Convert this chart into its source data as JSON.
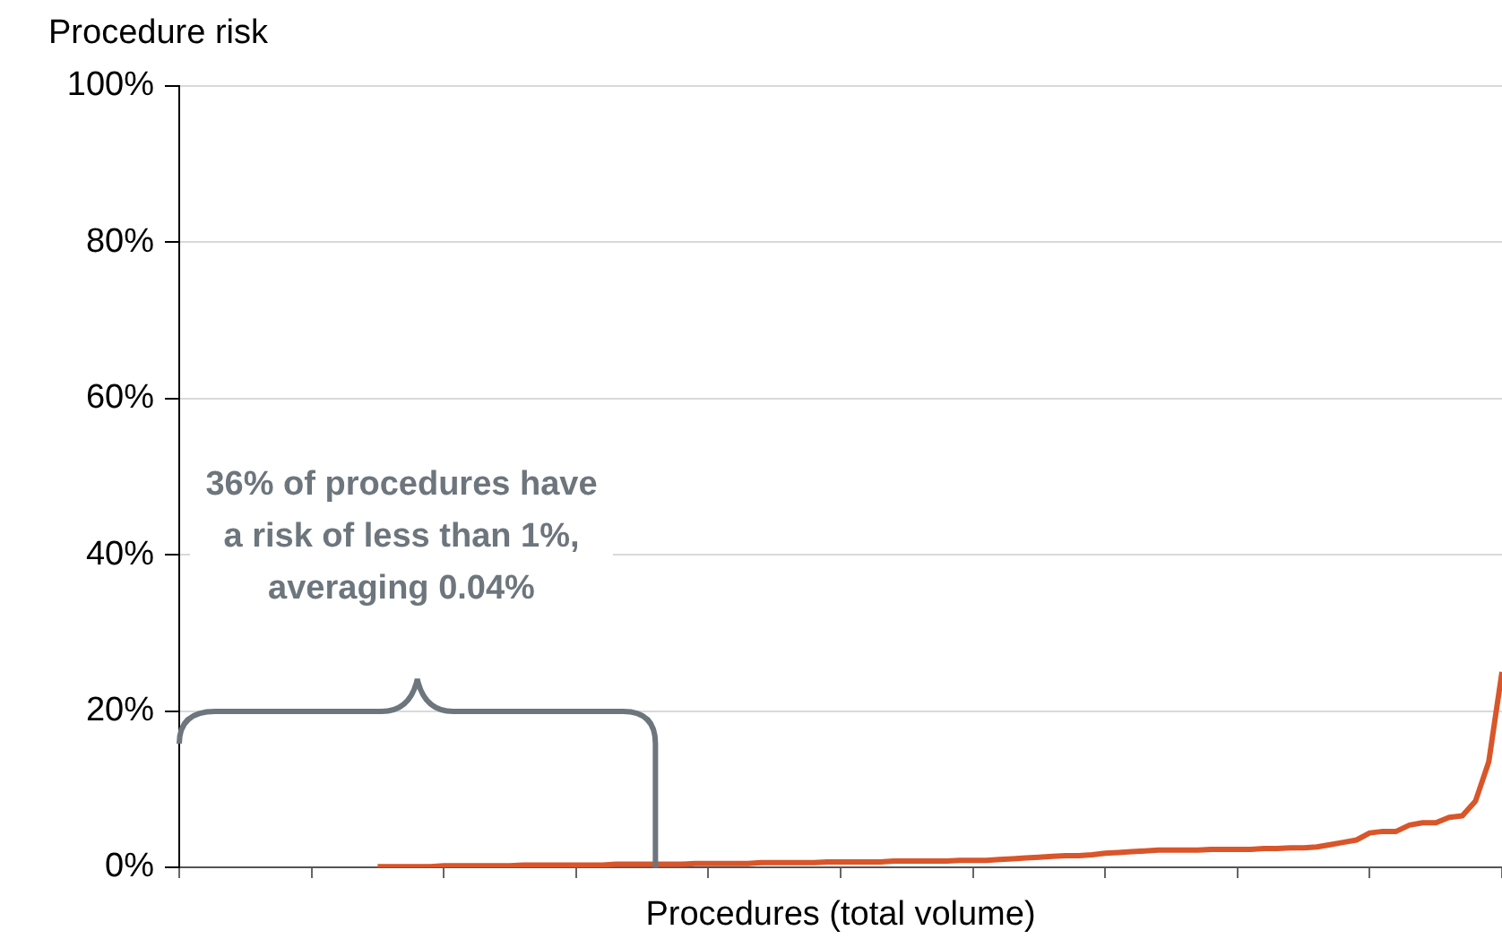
{
  "chart_data": {
    "type": "line",
    "ylabel": "Procedure risk",
    "xlabel": "Procedures (total volume)",
    "categories": [
      null,
      null,
      null,
      null,
      null,
      null,
      null,
      null,
      null,
      null,
      null,
      null,
      null,
      null,
      null,
      null,
      null,
      null,
      null,
      null,
      null,
      null,
      null,
      null,
      null,
      null,
      null,
      null,
      null,
      null,
      null,
      null,
      null,
      null,
      null,
      null,
      null,
      null,
      null,
      null,
      null,
      null,
      null,
      null,
      null,
      null,
      null,
      null,
      null,
      null,
      null,
      null,
      null,
      null,
      null,
      null,
      null,
      null,
      null,
      null,
      null,
      null,
      null,
      null,
      null,
      null,
      null,
      null,
      null,
      null,
      null,
      null,
      null,
      null,
      null,
      null,
      null,
      null,
      null,
      null,
      null,
      null,
      null,
      null,
      null,
      null,
      null,
      null,
      null,
      null,
      null,
      null,
      null,
      null,
      null,
      null,
      null,
      null,
      null,
      null,
      null
    ],
    "series": [
      {
        "color": "#d9552a",
        "values": [
          null,
          null,
          null,
          null,
          null,
          null,
          null,
          null,
          null,
          null,
          null,
          null,
          null,
          null,
          null,
          0.1,
          0.1,
          0.1,
          0.1,
          0.1,
          0.2,
          0.2,
          0.2,
          0.2,
          0.2,
          0.2,
          0.3,
          0.3,
          0.3,
          0.3,
          0.3,
          0.3,
          0.3,
          0.4,
          0.4,
          0.4,
          0.4,
          0.4,
          0.4,
          0.5,
          0.5,
          0.5,
          0.5,
          0.5,
          0.6,
          0.6,
          0.6,
          0.6,
          0.6,
          0.7,
          0.7,
          0.7,
          0.7,
          0.7,
          0.8,
          0.8,
          0.8,
          0.8,
          0.8,
          0.9,
          0.9,
          0.9,
          1.0,
          1.1,
          1.2,
          1.3,
          1.4,
          1.5,
          1.5,
          1.6,
          1.8,
          1.9,
          2.0,
          2.1,
          2.2,
          2.2,
          2.2,
          2.2,
          2.3,
          2.3,
          2.3,
          2.3,
          2.4,
          2.4,
          2.5,
          2.5,
          2.6,
          2.9,
          3.2,
          3.5,
          4.4,
          4.6,
          4.6,
          5.4,
          5.7,
          5.7,
          6.4,
          6.6,
          8.5,
          13.5,
          25
        ]
      }
    ],
    "ylim": [
      0,
      100
    ],
    "yticks": [
      {
        "value": 0,
        "label": "0%"
      },
      {
        "value": 20,
        "label": "20%"
      },
      {
        "value": 40,
        "label": "40%"
      },
      {
        "value": 60,
        "label": "60%"
      },
      {
        "value": 80,
        "label": "80%"
      },
      {
        "value": 100,
        "label": "100%"
      }
    ],
    "tick_labels": "y",
    "grid": "y",
    "legend": false,
    "marker": "none",
    "line_style": "solid",
    "annotations": [
      "36% of procedures have a risk of less than 1%, averaging 0.04%"
    ]
  }
}
